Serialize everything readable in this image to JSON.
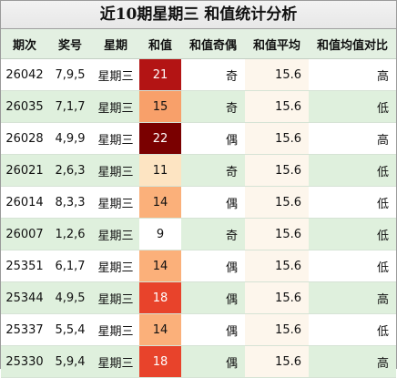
{
  "title": "近10期星期三 和值统计分析",
  "headers": [
    "期次",
    "奖号",
    "星期",
    "和值",
    "和值奇偶",
    "和值平均",
    "和值均值对比"
  ],
  "colors": {
    "sum_9": "#ffffff",
    "sum_11": "#fde4c2",
    "sum_14": "#fbb07a",
    "sum_15": "#f8a06a",
    "sum_18": "#e8432b",
    "sum_21": "#b31414",
    "sum_22": "#7a0000"
  },
  "rows": [
    {
      "period": "26042",
      "numbers": "7,9,5",
      "weekday": "星期三",
      "sum": "21",
      "parity": "奇",
      "avg": "15.6",
      "compare": "高"
    },
    {
      "period": "26035",
      "numbers": "7,1,7",
      "weekday": "星期三",
      "sum": "15",
      "parity": "奇",
      "avg": "15.6",
      "compare": "低"
    },
    {
      "period": "26028",
      "numbers": "4,9,9",
      "weekday": "星期三",
      "sum": "22",
      "parity": "偶",
      "avg": "15.6",
      "compare": "高"
    },
    {
      "period": "26021",
      "numbers": "2,6,3",
      "weekday": "星期三",
      "sum": "11",
      "parity": "奇",
      "avg": "15.6",
      "compare": "低"
    },
    {
      "period": "26014",
      "numbers": "8,3,3",
      "weekday": "星期三",
      "sum": "14",
      "parity": "偶",
      "avg": "15.6",
      "compare": "低"
    },
    {
      "period": "26007",
      "numbers": "1,2,6",
      "weekday": "星期三",
      "sum": "9",
      "parity": "奇",
      "avg": "15.6",
      "compare": "低"
    },
    {
      "period": "25351",
      "numbers": "6,1,7",
      "weekday": "星期三",
      "sum": "14",
      "parity": "偶",
      "avg": "15.6",
      "compare": "低"
    },
    {
      "period": "25344",
      "numbers": "4,9,5",
      "weekday": "星期三",
      "sum": "18",
      "parity": "偶",
      "avg": "15.6",
      "compare": "高"
    },
    {
      "period": "25337",
      "numbers": "5,5,4",
      "weekday": "星期三",
      "sum": "14",
      "parity": "偶",
      "avg": "15.6",
      "compare": "低"
    },
    {
      "period": "25330",
      "numbers": "5,9,4",
      "weekday": "星期三",
      "sum": "18",
      "parity": "偶",
      "avg": "15.6",
      "compare": "高"
    }
  ]
}
